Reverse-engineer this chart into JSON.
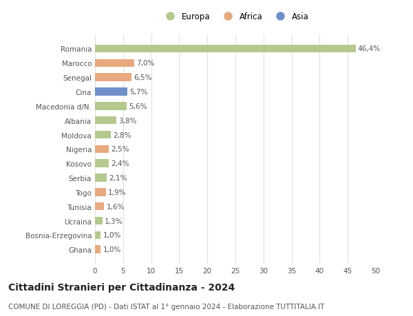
{
  "categories": [
    "Romania",
    "Marocco",
    "Senegal",
    "Cina",
    "Macedonia d/N.",
    "Albania",
    "Moldova",
    "Nigeria",
    "Kosovo",
    "Serbia",
    "Togo",
    "Tunisia",
    "Ucraina",
    "Bosnia-Erzegovina",
    "Ghana"
  ],
  "values": [
    46.4,
    7.0,
    6.5,
    5.7,
    5.6,
    3.8,
    2.8,
    2.5,
    2.4,
    2.1,
    1.9,
    1.6,
    1.3,
    1.0,
    1.0
  ],
  "labels": [
    "46,4%",
    "7,0%",
    "6,5%",
    "5,7%",
    "5,6%",
    "3,8%",
    "2,8%",
    "2,5%",
    "2,4%",
    "2,1%",
    "1,9%",
    "1,6%",
    "1,3%",
    "1,0%",
    "1,0%"
  ],
  "continent": [
    "Europa",
    "Africa",
    "Africa",
    "Asia",
    "Europa",
    "Europa",
    "Europa",
    "Africa",
    "Europa",
    "Europa",
    "Africa",
    "Africa",
    "Europa",
    "Europa",
    "Africa"
  ],
  "colors": {
    "Europa": "#b5c98e",
    "Africa": "#e8a97e",
    "Asia": "#6e8fc9"
  },
  "xlim": [
    0,
    50
  ],
  "xticks": [
    0,
    5,
    10,
    15,
    20,
    25,
    30,
    35,
    40,
    45,
    50
  ],
  "title": "Cittadini Stranieri per Cittadinanza - 2024",
  "subtitle": "COMUNE DI LOREGGIA (PD) - Dati ISTAT al 1° gennaio 2024 - Elaborazione TUTTITALIA.IT",
  "bg_color": "#ffffff",
  "grid_color": "#e0e0e0",
  "bar_height": 0.55,
  "title_fontsize": 10,
  "subtitle_fontsize": 7.5,
  "label_fontsize": 7.5,
  "tick_fontsize": 7.5,
  "legend_fontsize": 8.5
}
